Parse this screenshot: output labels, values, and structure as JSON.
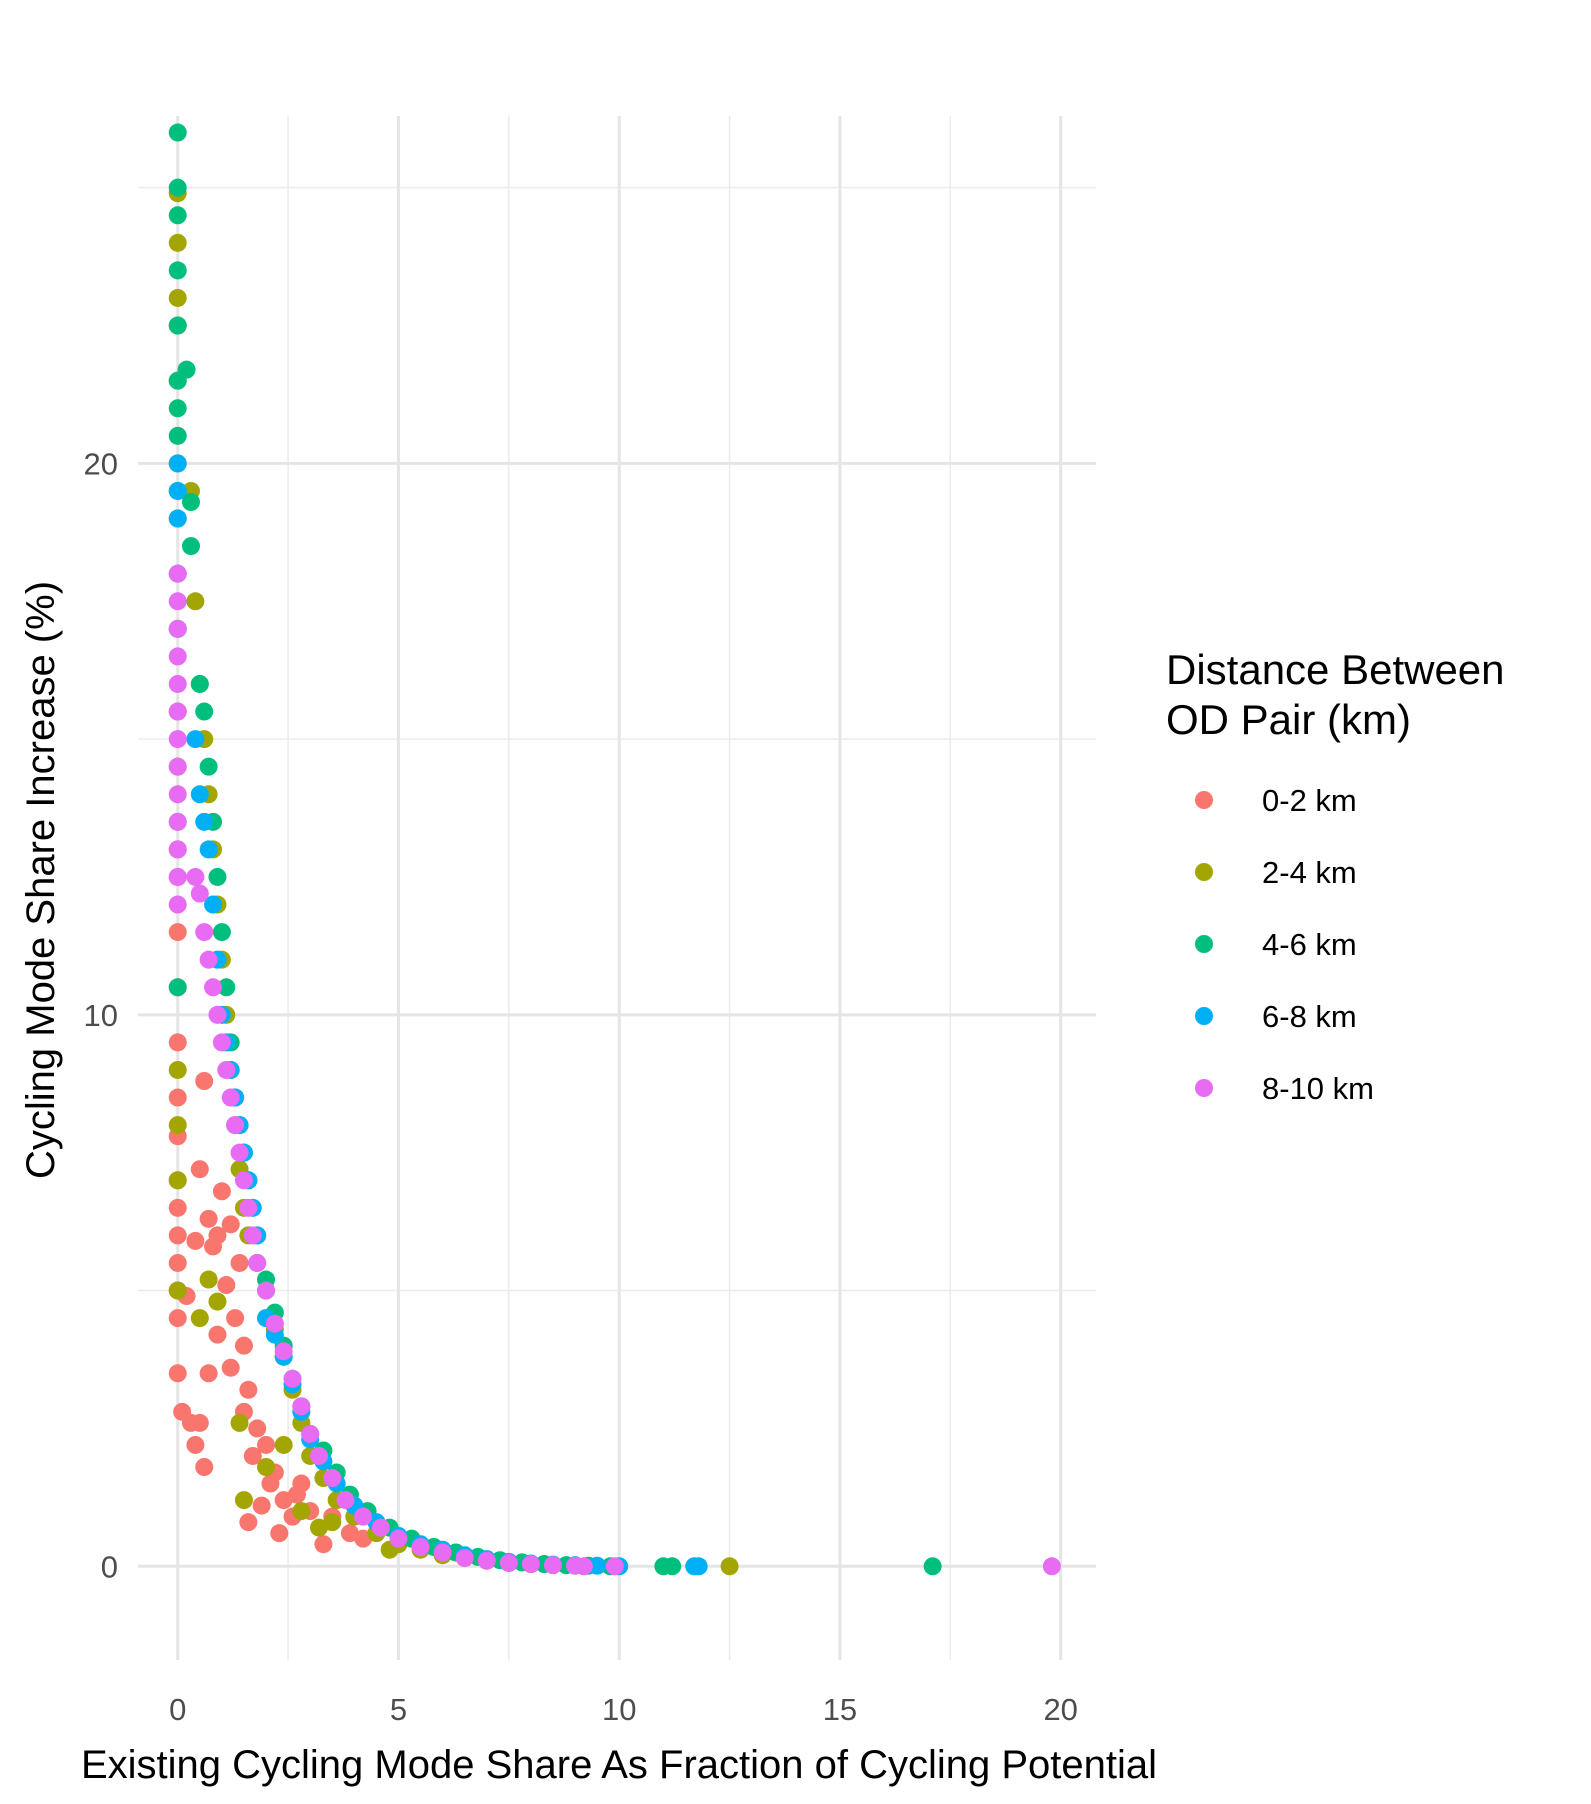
{
  "chart_data": {
    "type": "scatter",
    "title": "",
    "xlabel": "Existing Cycling Mode Share As Fraction of Cycling Potential",
    "ylabel": "Cycling Mode Share Increase (%)",
    "xlim": [
      -0.9,
      20.8
    ],
    "ylim": [
      -1.7,
      26.3
    ],
    "x_ticks": [
      0,
      5,
      10,
      15,
      20
    ],
    "x_tick_labels": [
      "0",
      "5",
      "10",
      "15",
      "20"
    ],
    "y_ticks": [
      0,
      10,
      20
    ],
    "y_tick_labels": [
      "0",
      "10",
      "20"
    ],
    "grid": true,
    "legend": {
      "title_lines": [
        "Distance Between",
        "OD Pair (km)"
      ],
      "position": "right"
    },
    "series": [
      {
        "name": "0-2 km",
        "color": "#F8766D",
        "points": [
          [
            0,
            12.5
          ],
          [
            0,
            11.5
          ],
          [
            0,
            10.5
          ],
          [
            0,
            9.5
          ],
          [
            0,
            8.5
          ],
          [
            0,
            7.8
          ],
          [
            0,
            7.0
          ],
          [
            0,
            6.5
          ],
          [
            0,
            6.0
          ],
          [
            0,
            5.5
          ],
          [
            0,
            5.0
          ],
          [
            0,
            4.5
          ],
          [
            0,
            3.5
          ],
          [
            0.2,
            4.9
          ],
          [
            0.1,
            2.8
          ],
          [
            0.3,
            2.6
          ],
          [
            0.4,
            2.2
          ],
          [
            0.5,
            2.6
          ],
          [
            0.6,
            1.8
          ],
          [
            0.7,
            3.5
          ],
          [
            0.8,
            5.8
          ],
          [
            0.9,
            4.2
          ],
          [
            1.0,
            6.8
          ],
          [
            1.1,
            5.1
          ],
          [
            1.2,
            6.2
          ],
          [
            1.3,
            4.5
          ],
          [
            1.4,
            5.5
          ],
          [
            1.5,
            4.0
          ],
          [
            1.6,
            3.2
          ],
          [
            1.8,
            2.5
          ],
          [
            2.0,
            2.2
          ],
          [
            2.2,
            1.7
          ],
          [
            2.4,
            1.2
          ],
          [
            2.6,
            0.9
          ],
          [
            2.8,
            1.5
          ],
          [
            3.0,
            1.0
          ],
          [
            3.3,
            0.4
          ],
          [
            1.6,
            0.8
          ],
          [
            1.9,
            1.1
          ],
          [
            2.3,
            0.6
          ],
          [
            0.5,
            7.2
          ],
          [
            0.6,
            8.8
          ],
          [
            0.7,
            6.3
          ],
          [
            0.4,
            5.9
          ],
          [
            0.9,
            6.0
          ],
          [
            1.2,
            3.6
          ],
          [
            1.5,
            2.8
          ],
          [
            1.7,
            2.0
          ],
          [
            2.1,
            1.5
          ],
          [
            2.7,
            1.3
          ],
          [
            3.5,
            0.9
          ],
          [
            3.9,
            0.6
          ],
          [
            4.2,
            0.5
          ]
        ]
      },
      {
        "name": "2-4 km",
        "color": "#A3A500",
        "points": [
          [
            0,
            24.9
          ],
          [
            0,
            24.0
          ],
          [
            0,
            23.0
          ],
          [
            0,
            22.5
          ],
          [
            0,
            21.5
          ],
          [
            0,
            20.0
          ],
          [
            0,
            19.0
          ],
          [
            0,
            17.0
          ],
          [
            0,
            15.5
          ],
          [
            0,
            14.5
          ],
          [
            0,
            13.0
          ],
          [
            0,
            9.0
          ],
          [
            0,
            8.0
          ],
          [
            0,
            7.0
          ],
          [
            0,
            5.0
          ],
          [
            0.3,
            19.5
          ],
          [
            0.4,
            17.5
          ],
          [
            0.5,
            16.0
          ],
          [
            0.6,
            15.0
          ],
          [
            0.7,
            14.0
          ],
          [
            0.8,
            13.0
          ],
          [
            0.9,
            12.0
          ],
          [
            1.0,
            11.0
          ],
          [
            1.1,
            10.0
          ],
          [
            1.2,
            9.0
          ],
          [
            1.3,
            8.0
          ],
          [
            1.4,
            7.2
          ],
          [
            1.5,
            6.5
          ],
          [
            1.6,
            6.0
          ],
          [
            1.8,
            5.5
          ],
          [
            2.0,
            5.0
          ],
          [
            2.2,
            4.3
          ],
          [
            2.4,
            3.8
          ],
          [
            2.6,
            3.2
          ],
          [
            2.8,
            2.6
          ],
          [
            3.0,
            2.0
          ],
          [
            3.3,
            1.6
          ],
          [
            3.6,
            1.2
          ],
          [
            4.0,
            0.9
          ],
          [
            4.5,
            0.6
          ],
          [
            5.0,
            0.4
          ],
          [
            5.5,
            0.3
          ],
          [
            6.0,
            0.2
          ],
          [
            6.5,
            0.15
          ],
          [
            7.0,
            0.1
          ],
          [
            7.5,
            0.06
          ],
          [
            8.0,
            0.04
          ],
          [
            8.5,
            0.02
          ],
          [
            9.0,
            0.01
          ],
          [
            12.5,
            0
          ],
          [
            0.5,
            4.5
          ],
          [
            0.7,
            5.2
          ],
          [
            0.9,
            4.8
          ],
          [
            1.4,
            2.6
          ],
          [
            1.5,
            1.2
          ],
          [
            2.0,
            1.8
          ],
          [
            2.4,
            2.2
          ],
          [
            2.8,
            1.0
          ],
          [
            3.2,
            0.7
          ],
          [
            3.5,
            0.8
          ],
          [
            4.8,
            0.3
          ]
        ]
      },
      {
        "name": "4-6 km",
        "color": "#00BF7D",
        "points": [
          [
            0,
            26.0
          ],
          [
            0,
            25.0
          ],
          [
            0,
            24.5
          ],
          [
            0,
            23.5
          ],
          [
            0,
            22.5
          ],
          [
            0,
            21.5
          ],
          [
            0,
            21.0
          ],
          [
            0,
            20.5
          ],
          [
            0,
            19.5
          ],
          [
            0,
            13.5
          ],
          [
            0,
            10.5
          ],
          [
            0.2,
            21.7
          ],
          [
            0.3,
            18.5
          ],
          [
            0.5,
            16.0
          ],
          [
            0.6,
            15.5
          ],
          [
            0.7,
            14.5
          ],
          [
            0.8,
            13.5
          ],
          [
            0.9,
            12.5
          ],
          [
            1.0,
            11.5
          ],
          [
            1.1,
            10.5
          ],
          [
            1.2,
            9.5
          ],
          [
            1.3,
            8.5
          ],
          [
            1.4,
            8.0
          ],
          [
            1.5,
            7.5
          ],
          [
            1.6,
            7.0
          ],
          [
            1.8,
            6.0
          ],
          [
            2.0,
            5.2
          ],
          [
            2.2,
            4.6
          ],
          [
            2.4,
            4.0
          ],
          [
            2.6,
            3.4
          ],
          [
            2.8,
            2.9
          ],
          [
            3.0,
            2.4
          ],
          [
            3.3,
            2.1
          ],
          [
            3.6,
            1.7
          ],
          [
            3.9,
            1.3
          ],
          [
            4.3,
            1.0
          ],
          [
            4.8,
            0.7
          ],
          [
            5.3,
            0.5
          ],
          [
            5.8,
            0.35
          ],
          [
            6.3,
            0.25
          ],
          [
            6.8,
            0.17
          ],
          [
            7.3,
            0.11
          ],
          [
            7.8,
            0.07
          ],
          [
            8.3,
            0.04
          ],
          [
            8.8,
            0.02
          ],
          [
            9.3,
            0.01
          ],
          [
            9.8,
            0
          ],
          [
            11.0,
            0
          ],
          [
            11.2,
            0
          ],
          [
            17.1,
            0
          ],
          [
            0.3,
            19.3
          ]
        ]
      },
      {
        "name": "6-8 km",
        "color": "#00B0F6",
        "points": [
          [
            0,
            20.0
          ],
          [
            0,
            19.5
          ],
          [
            0,
            19.0
          ],
          [
            0,
            18.0
          ],
          [
            0,
            17.0
          ],
          [
            0.4,
            15.0
          ],
          [
            0.5,
            14.0
          ],
          [
            0.6,
            13.5
          ],
          [
            0.7,
            13.0
          ],
          [
            0.8,
            12.0
          ],
          [
            0.9,
            11.0
          ],
          [
            1.0,
            10.0
          ],
          [
            1.1,
            9.5
          ],
          [
            1.2,
            9.0
          ],
          [
            1.3,
            8.5
          ],
          [
            1.4,
            8.0
          ],
          [
            1.5,
            7.5
          ],
          [
            1.6,
            7.0
          ],
          [
            1.7,
            6.5
          ],
          [
            1.8,
            6.0
          ],
          [
            2.0,
            4.5
          ],
          [
            2.2,
            4.2
          ],
          [
            2.4,
            3.8
          ],
          [
            2.6,
            3.3
          ],
          [
            2.8,
            2.8
          ],
          [
            3.0,
            2.3
          ],
          [
            3.3,
            1.9
          ],
          [
            3.6,
            1.5
          ],
          [
            4.0,
            1.1
          ],
          [
            4.5,
            0.8
          ],
          [
            5.0,
            0.55
          ],
          [
            5.5,
            0.4
          ],
          [
            6.0,
            0.3
          ],
          [
            6.5,
            0.2
          ],
          [
            7.0,
            0.13
          ],
          [
            7.5,
            0.08
          ],
          [
            8.0,
            0.05
          ],
          [
            8.5,
            0.03
          ],
          [
            9.0,
            0.02
          ],
          [
            9.5,
            0.01
          ],
          [
            10.0,
            0
          ],
          [
            11.8,
            0
          ],
          [
            11.7,
            0
          ]
        ]
      },
      {
        "name": "8-10 km",
        "color": "#E76BF3",
        "points": [
          [
            0,
            18.0
          ],
          [
            0,
            17.5
          ],
          [
            0,
            17.0
          ],
          [
            0,
            16.5
          ],
          [
            0,
            16.0
          ],
          [
            0,
            15.5
          ],
          [
            0,
            15.0
          ],
          [
            0,
            14.5
          ],
          [
            0,
            14.0
          ],
          [
            0,
            13.5
          ],
          [
            0,
            13.0
          ],
          [
            0,
            12.5
          ],
          [
            0,
            12.0
          ],
          [
            0.4,
            12.5
          ],
          [
            0.5,
            12.2
          ],
          [
            0.6,
            11.5
          ],
          [
            0.7,
            11.0
          ],
          [
            0.8,
            10.5
          ],
          [
            0.9,
            10.0
          ],
          [
            1.0,
            9.5
          ],
          [
            1.1,
            9.0
          ],
          [
            1.2,
            8.5
          ],
          [
            1.3,
            8.0
          ],
          [
            1.4,
            7.5
          ],
          [
            1.5,
            7.0
          ],
          [
            1.6,
            6.5
          ],
          [
            1.7,
            6.0
          ],
          [
            1.8,
            5.5
          ],
          [
            2.0,
            5.0
          ],
          [
            2.2,
            4.4
          ],
          [
            2.4,
            3.9
          ],
          [
            2.6,
            3.4
          ],
          [
            2.8,
            2.9
          ],
          [
            3.0,
            2.4
          ],
          [
            3.2,
            2.0
          ],
          [
            3.5,
            1.6
          ],
          [
            3.8,
            1.2
          ],
          [
            4.2,
            0.9
          ],
          [
            4.6,
            0.7
          ],
          [
            5.0,
            0.5
          ],
          [
            5.5,
            0.35
          ],
          [
            6.0,
            0.25
          ],
          [
            6.5,
            0.15
          ],
          [
            7.0,
            0.1
          ],
          [
            7.5,
            0.06
          ],
          [
            8.0,
            0.04
          ],
          [
            8.5,
            0.02
          ],
          [
            9.0,
            0.01
          ],
          [
            9.2,
            0
          ],
          [
            9.9,
            0
          ],
          [
            19.8,
            0
          ]
        ]
      }
    ]
  }
}
